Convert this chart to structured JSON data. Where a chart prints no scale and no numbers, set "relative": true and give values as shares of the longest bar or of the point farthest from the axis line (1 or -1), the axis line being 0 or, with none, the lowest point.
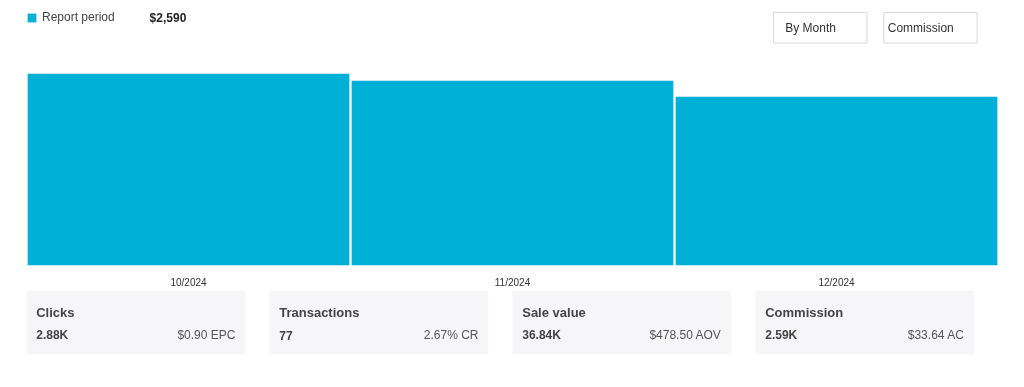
{
  "chart_data": [
    {
      "type": "bar",
      "categories": [
        "10/2024",
        "11/2024",
        "12/2024"
      ],
      "series": [
        {
          "name": "Report period",
          "color": "#00b0d6",
          "values": [
            1,
            0.963,
            0.88
          ]
        }
      ],
      "relative": true,
      "legend": "top left",
      "grid": false,
      "annotations": [
        "$2,590",
        "By Month",
        "Commission"
      ]
    },
    {
      "type": "other",
      "annotations": [
        "Clicks",
        "2.88K",
        "$0.90 EPC",
        "Transactions",
        "77",
        "2.67% CR",
        "Sale value",
        "36.84K",
        "$478.50 AOV",
        "Commission",
        "2.59K",
        "$33.64 AC"
      ]
    }
  ]
}
